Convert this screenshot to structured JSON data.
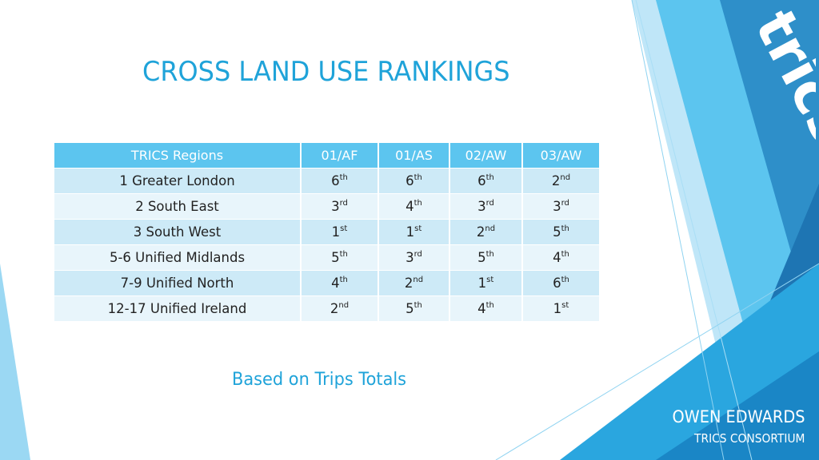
{
  "slide": {
    "title": "CROSS LAND USE RANKINGS",
    "subtitle": "Based on Trips Totals",
    "author_name": "OWEN EDWARDS",
    "author_org": "TRICS CONSORTIUM",
    "logo_text": "trics"
  },
  "table": {
    "headers": [
      "TRICS Regions",
      "01/AF",
      "01/AS",
      "02/AW",
      "03/AW"
    ],
    "rows": [
      {
        "region": "1 Greater London",
        "ranks": [
          {
            "n": "6",
            "s": "th"
          },
          {
            "n": "6",
            "s": "th"
          },
          {
            "n": "6",
            "s": "th"
          },
          {
            "n": "2",
            "s": "nd"
          }
        ]
      },
      {
        "region": "2 South East",
        "ranks": [
          {
            "n": "3",
            "s": "rd"
          },
          {
            "n": "4",
            "s": "th"
          },
          {
            "n": "3",
            "s": "rd"
          },
          {
            "n": "3",
            "s": "rd"
          }
        ]
      },
      {
        "region": "3 South West",
        "ranks": [
          {
            "n": "1",
            "s": "st"
          },
          {
            "n": "1",
            "s": "st"
          },
          {
            "n": "2",
            "s": "nd"
          },
          {
            "n": "5",
            "s": "th"
          }
        ]
      },
      {
        "region": "5-6 Unified Midlands",
        "ranks": [
          {
            "n": "5",
            "s": "th"
          },
          {
            "n": "3",
            "s": "rd"
          },
          {
            "n": "5",
            "s": "th"
          },
          {
            "n": "4",
            "s": "th"
          }
        ]
      },
      {
        "region": "7-9 Unified North",
        "ranks": [
          {
            "n": "4",
            "s": "th"
          },
          {
            "n": "2",
            "s": "nd"
          },
          {
            "n": "1",
            "s": "st"
          },
          {
            "n": "6",
            "s": "th"
          }
        ]
      },
      {
        "region": "12-17 Unified Ireland",
        "ranks": [
          {
            "n": "2",
            "s": "nd"
          },
          {
            "n": "5",
            "s": "th"
          },
          {
            "n": "4",
            "s": "th"
          },
          {
            "n": "1",
            "s": "st"
          }
        ]
      }
    ]
  },
  "colors": {
    "accent": "#1fa3d9",
    "header_bg": "#5cc5ef",
    "row_dark": "#cdeaf7",
    "row_light": "#e8f5fb",
    "deco_dark": "#1a6aa3",
    "deco_mid": "#2e9fd8",
    "deco_light": "#7fd0f2"
  }
}
